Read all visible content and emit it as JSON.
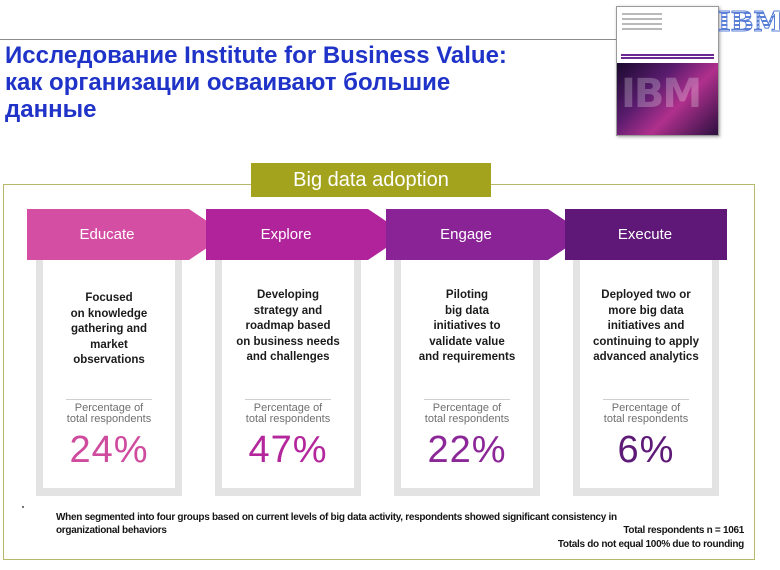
{
  "slide": {
    "title_lines": [
      "Исследование Institute for Business Value:",
      "как организации осваивают большие",
      "данные"
    ]
  },
  "logo": {
    "text": "IBM"
  },
  "cover": {
    "image_text": "IBM"
  },
  "adoption": {
    "title": "Big data adoption",
    "percent_label_lines": [
      "Percentage of",
      "total respondents"
    ],
    "stages": [
      {
        "name": "Educate",
        "description_lines": [
          "Focused",
          "on knowledge",
          "gathering and",
          "market",
          "observations"
        ],
        "percent": "24%",
        "color": "#d44fa3",
        "percent_color": "#cf4b9e"
      },
      {
        "name": "Explore",
        "description_lines": [
          "Developing",
          "strategy and",
          "roadmap based",
          "on business needs",
          "and challenges"
        ],
        "percent": "47%",
        "color": "#b1239a",
        "percent_color": "#b4279c"
      },
      {
        "name": "Engage",
        "description_lines": [
          "Piloting",
          "big data",
          "initiatives to",
          "validate value",
          "and requirements"
        ],
        "percent": "22%",
        "color": "#8a2396",
        "percent_color": "#8c2797"
      },
      {
        "name": "Execute",
        "description_lines": [
          "Deployed two or",
          "more big data",
          "initiatives and",
          "continuing to apply",
          "advanced analytics"
        ],
        "percent": "6%",
        "color": "#5f1877",
        "percent_color": "#5e1a77"
      }
    ]
  },
  "footnote": {
    "lines": [
      "When segmented into four groups based on current levels of big data activity, respondents showed significant consistency in",
      "organizational behaviors"
    ]
  },
  "respondents": {
    "total": "Total respondents n = 1061",
    "rounding": "Totals do not equal 100% due to rounding"
  }
}
